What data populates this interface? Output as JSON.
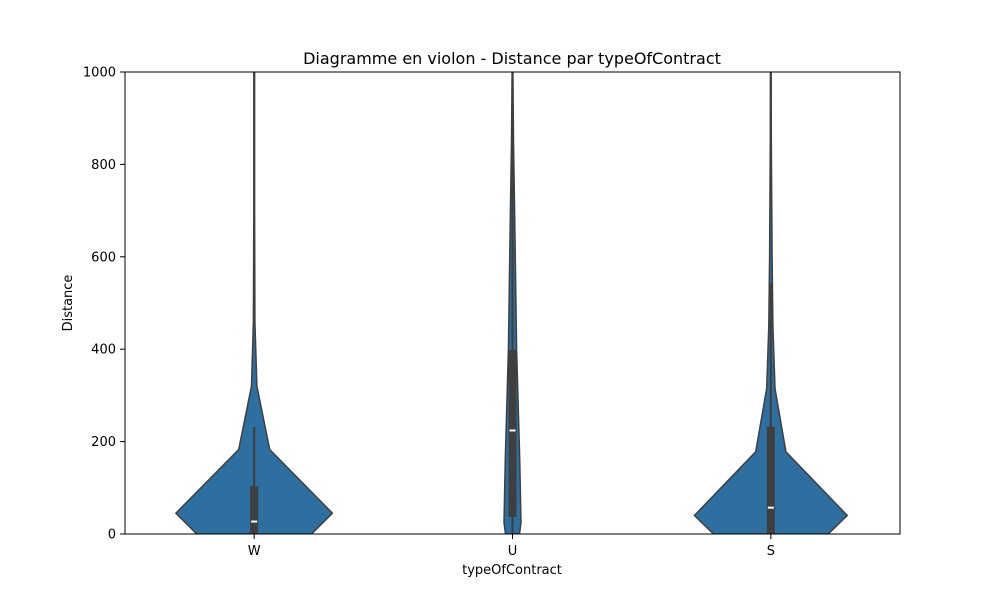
{
  "chart_data": {
    "type": "violin",
    "title": "Diagramme en violon - Distance par typeOfContract",
    "xlabel": "typeOfContract",
    "ylabel": "Distance",
    "ylim": [
      0,
      1000
    ],
    "yticks": [
      0,
      200,
      400,
      600,
      800,
      1000
    ],
    "categories": [
      "W",
      "U",
      "S"
    ],
    "fill_color": "#2e6fa1",
    "edge_color": "#3f3f3f",
    "violins": [
      {
        "category": "W",
        "box": {
          "q1": 0,
          "median": 27,
          "q3": 104,
          "whisker_low": 0,
          "whisker_high": 232
        },
        "profile": [
          [
            0,
            0.555
          ],
          [
            45,
            0.757
          ],
          [
            183,
            0.15
          ],
          [
            320,
            0.026
          ],
          [
            460,
            0.007
          ],
          [
            700,
            0.004
          ],
          [
            1000,
            0.004
          ]
        ]
      },
      {
        "category": "U",
        "box": {
          "q1": 37,
          "median": 224,
          "q3": 398,
          "whisker_low": 0,
          "whisker_high": 910
        },
        "profile": [
          [
            0,
            0.068
          ],
          [
            25,
            0.082
          ],
          [
            163,
            0.07
          ],
          [
            400,
            0.04
          ],
          [
            700,
            0.02
          ],
          [
            850,
            0.01
          ],
          [
            1000,
            0.004
          ]
        ]
      },
      {
        "category": "S",
        "box": {
          "q1": 0,
          "median": 57,
          "q3": 232,
          "whisker_low": 0,
          "whisker_high": 543
        },
        "profile": [
          [
            0,
            0.555
          ],
          [
            40,
            0.74
          ],
          [
            178,
            0.146
          ],
          [
            315,
            0.04
          ],
          [
            450,
            0.02
          ],
          [
            600,
            0.012
          ],
          [
            850,
            0.005
          ],
          [
            1000,
            0.004
          ]
        ]
      }
    ]
  }
}
